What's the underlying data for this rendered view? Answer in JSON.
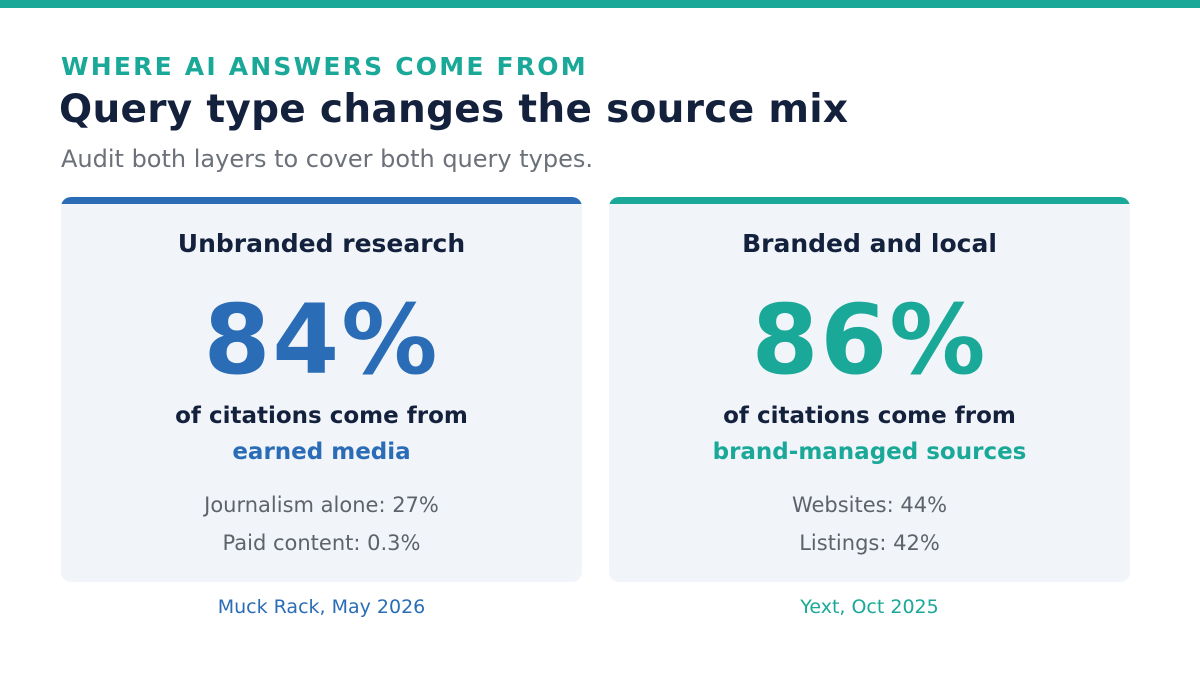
{
  "header": {
    "eyebrow": "WHERE AI ANSWERS COME FROM",
    "title": "Query type changes the source mix",
    "subtitle": "Audit both layers to cover both query types."
  },
  "cards": [
    {
      "heading": "Unbranded research",
      "stat": "84%",
      "lead": "of citations come from",
      "highlight": "earned media",
      "details": [
        "Journalism alone: 27%",
        "Paid content: 0.3%"
      ],
      "source": "Muck Rack, May 2026",
      "accent_color": "#2a6db6"
    },
    {
      "heading": "Branded and local",
      "stat": "86%",
      "lead": "of citations come from",
      "highlight": "brand-managed sources",
      "details": [
        "Websites: 44%",
        "Listings: 42%"
      ],
      "source": "Yext, Oct 2025",
      "accent_color": "#1aa898"
    }
  ],
  "colors": {
    "brand_teal": "#1aa898",
    "brand_blue": "#2a6db6",
    "text_dark": "#14213d",
    "text_muted": "#6b7079",
    "card_background": "#f1f4f9"
  }
}
